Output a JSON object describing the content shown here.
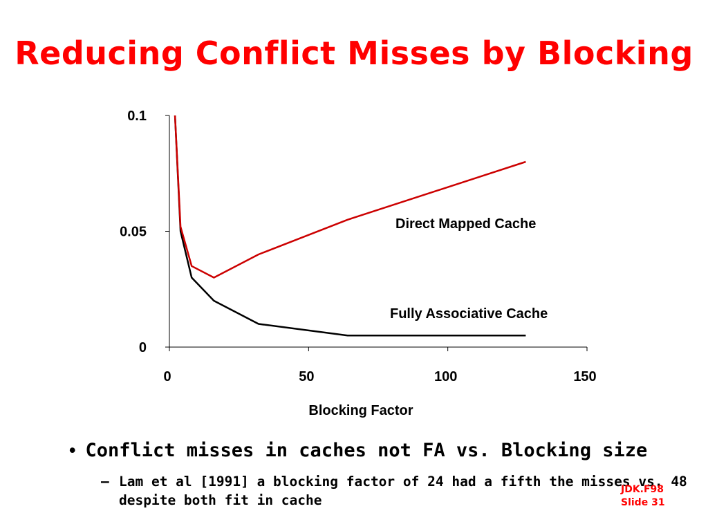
{
  "slide": {
    "title": "Reducing Conflict Misses by Blocking",
    "bullet": "Conflict misses in caches not FA vs. Blocking size",
    "bullet_symbol": "•",
    "sub_bullet_symbol": "–",
    "sub_bullet": "Lam et al [1991] a blocking factor of 24 had a fifth the  misses vs. 48 despite both fit in cache",
    "footer_line1": "JDK.F98",
    "footer_line2": "Slide 31",
    "colors": {
      "title": "#ff0000",
      "footer": "#ff0000",
      "direct_mapped": "#cc0000",
      "fully_associative": "#000000"
    }
  },
  "chart_data": {
    "type": "line",
    "xlabel": "Blocking Factor",
    "ylabel": "",
    "xlim": [
      0,
      150
    ],
    "ylim": [
      0,
      0.1
    ],
    "x_ticks": [
      "0",
      "50",
      "100",
      "150"
    ],
    "x_tick_values": [
      0,
      50,
      100,
      150
    ],
    "y_ticks": [
      "0",
      "0.05",
      "0.1"
    ],
    "y_tick_values": [
      0,
      0.05,
      0.1
    ],
    "grid": false,
    "series": [
      {
        "name": "Direct Mapped Cache",
        "x": [
          2,
          4,
          8,
          16,
          32,
          64,
          128
        ],
        "y": [
          0.1,
          0.052,
          0.035,
          0.03,
          0.04,
          0.055,
          0.08
        ]
      },
      {
        "name": "Fully Associative Cache",
        "x": [
          2,
          4,
          8,
          16,
          32,
          64,
          128
        ],
        "y": [
          0.1,
          0.05,
          0.03,
          0.02,
          0.01,
          0.005,
          0.005
        ]
      }
    ]
  }
}
